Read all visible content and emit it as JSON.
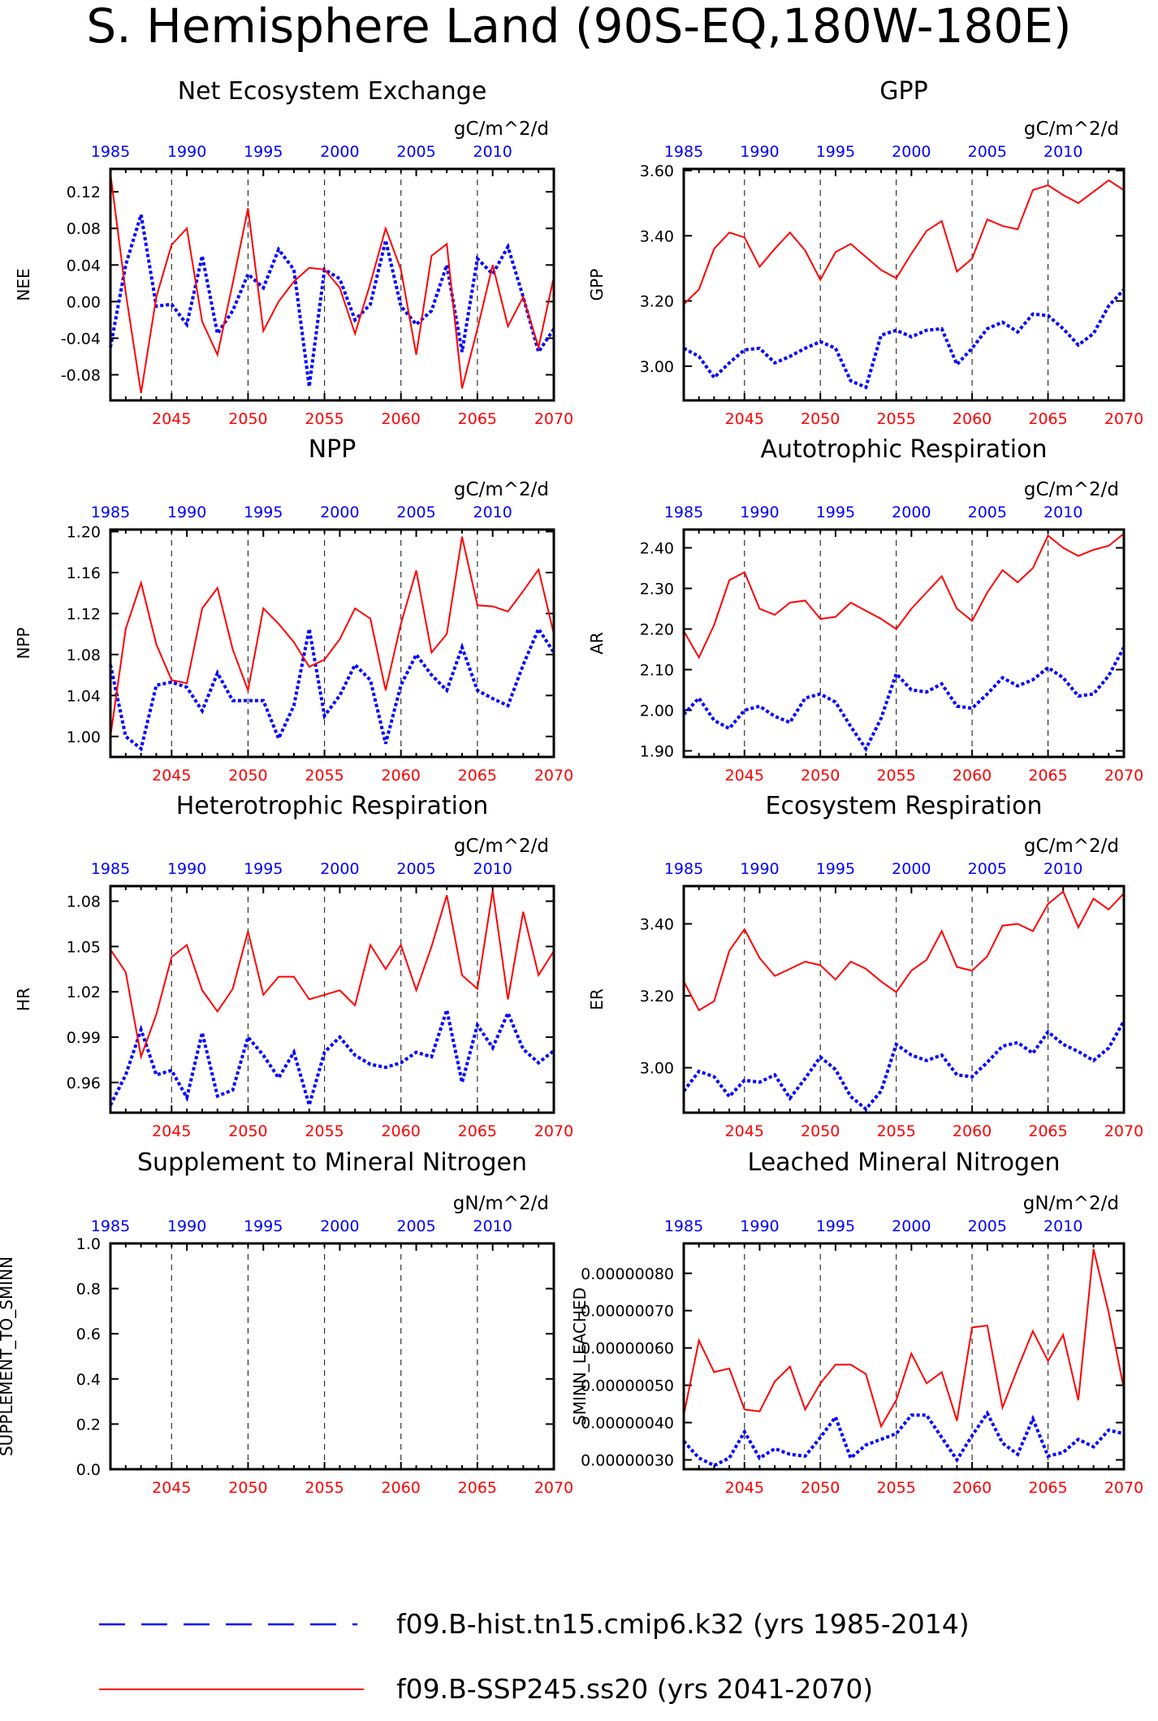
{
  "figure": {
    "title": "S. Hemisphere Land (90S-EQ,180W-180E)"
  },
  "legend": {
    "items": [
      {
        "label": "f09.B-hist.tn15.cmip6.k32 (yrs 1985-2014)",
        "color": "#0000ff",
        "style": "dashed"
      },
      {
        "label": "f09.B-SSP245.ss20 (yrs 2041-2070)",
        "color": "#ff0000",
        "style": "solid"
      }
    ]
  },
  "chart_data": [
    {
      "type": "line",
      "title": "Net Ecosystem Exchange",
      "units": "gC/m^2/d",
      "ylabel": "NEE",
      "ylim": [
        -0.108,
        0.145
      ],
      "yticks": [
        -0.08,
        -0.04,
        0.0,
        0.04,
        0.08,
        0.12
      ],
      "ytick_labels": [
        "-0.08",
        "-0.04",
        "0.00",
        "0.04",
        "0.08",
        "0.12"
      ],
      "x_top": {
        "label_ticks": [
          1985,
          1990,
          1995,
          2000,
          2005,
          2010
        ],
        "range": [
          1985,
          2014
        ]
      },
      "x_bottom": {
        "label_ticks": [
          2045,
          2050,
          2055,
          2060,
          2065,
          2070
        ],
        "range": [
          2041,
          2070
        ]
      },
      "grid": "dashed vertical at 5-year marks",
      "series": [
        {
          "name": "f09.B-hist.tn15.cmip6.k32",
          "values": [
            -0.05,
            0.04,
            0.095,
            -0.005,
            -0.003,
            -0.025,
            0.05,
            -0.035,
            -0.01,
            0.03,
            0.015,
            0.057,
            0.035,
            -0.093,
            0.035,
            0.025,
            -0.02,
            -0.003,
            0.067,
            -0.005,
            -0.025,
            -0.01,
            0.04,
            -0.055,
            0.047,
            0.03,
            0.06,
            0.005,
            -0.055,
            -0.03
          ]
        },
        {
          "name": "f09.B-SSP245.ss20",
          "values": [
            0.14,
            0.01,
            -0.1,
            0.005,
            0.062,
            0.08,
            -0.022,
            -0.058,
            0.02,
            0.102,
            -0.032,
            0.0,
            0.022,
            0.037,
            0.035,
            0.015,
            -0.035,
            0.02,
            0.08,
            0.035,
            -0.058,
            0.05,
            0.063,
            -0.095,
            -0.03,
            0.04,
            -0.027,
            0.005,
            -0.05,
            0.027
          ]
        }
      ]
    },
    {
      "type": "line",
      "title": "GPP",
      "units": "gC/m^2/d",
      "ylabel": "GPP",
      "ylim": [
        2.895,
        3.605
      ],
      "yticks": [
        3.0,
        3.2,
        3.4,
        3.6
      ],
      "ytick_labels": [
        "3.00",
        "3.20",
        "3.40",
        "3.60"
      ],
      "x_top": {
        "label_ticks": [
          1985,
          1990,
          1995,
          2000,
          2005,
          2010
        ],
        "range": [
          1985,
          2014
        ]
      },
      "x_bottom": {
        "label_ticks": [
          2045,
          2050,
          2055,
          2060,
          2065,
          2070
        ],
        "range": [
          2041,
          2070
        ]
      },
      "grid": "dashed vertical at 5-year marks",
      "series": [
        {
          "name": "f09.B-hist.tn15.cmip6.k32",
          "values": [
            3.055,
            3.03,
            2.965,
            3.01,
            3.05,
            3.055,
            3.01,
            3.03,
            3.055,
            3.075,
            3.055,
            2.955,
            2.935,
            3.095,
            3.11,
            3.09,
            3.11,
            3.115,
            3.005,
            3.055,
            3.115,
            3.135,
            3.105,
            3.16,
            3.155,
            3.115,
            3.065,
            3.1,
            3.185,
            3.235
          ]
        },
        {
          "name": "f09.B-SSP245.ss20",
          "values": [
            3.19,
            3.235,
            3.36,
            3.41,
            3.395,
            3.305,
            3.36,
            3.41,
            3.355,
            3.265,
            3.35,
            3.375,
            3.335,
            3.295,
            3.27,
            3.345,
            3.415,
            3.445,
            3.29,
            3.33,
            3.45,
            3.43,
            3.42,
            3.54,
            3.555,
            3.525,
            3.5,
            3.535,
            3.57,
            3.54
          ]
        }
      ]
    },
    {
      "type": "line",
      "title": "NPP",
      "units": "gC/m^2/d",
      "ylabel": "NPP",
      "ylim": [
        0.98,
        1.202
      ],
      "yticks": [
        1.0,
        1.04,
        1.08,
        1.12,
        1.16,
        1.2
      ],
      "ytick_labels": [
        "1.00",
        "1.04",
        "1.08",
        "1.12",
        "1.16",
        "1.20"
      ],
      "x_top": {
        "label_ticks": [
          1985,
          1990,
          1995,
          2000,
          2005,
          2010
        ],
        "range": [
          1985,
          2014
        ]
      },
      "x_bottom": {
        "label_ticks": [
          2045,
          2050,
          2055,
          2060,
          2065,
          2070
        ],
        "range": [
          2041,
          2070
        ]
      },
      "grid": "dashed vertical at 5-year marks",
      "series": [
        {
          "name": "f09.B-hist.tn15.cmip6.k32",
          "values": [
            1.07,
            1.0,
            0.988,
            1.05,
            1.053,
            1.048,
            1.025,
            1.062,
            1.035,
            1.035,
            1.035,
            0.998,
            1.03,
            1.105,
            1.02,
            1.04,
            1.07,
            1.055,
            0.993,
            1.05,
            1.08,
            1.06,
            1.045,
            1.087,
            1.045,
            1.037,
            1.03,
            1.07,
            1.105,
            1.082
          ]
        },
        {
          "name": "f09.B-SSP245.ss20",
          "values": [
            1.0,
            1.105,
            1.15,
            1.09,
            1.055,
            1.052,
            1.125,
            1.145,
            1.085,
            1.045,
            1.125,
            1.11,
            1.092,
            1.068,
            1.075,
            1.095,
            1.125,
            1.115,
            1.045,
            1.11,
            1.162,
            1.082,
            1.1,
            1.195,
            1.128,
            1.127,
            1.122,
            1.142,
            1.163,
            1.1
          ]
        }
      ]
    },
    {
      "type": "line",
      "title": "Autotrophic Respiration",
      "units": "gC/m^2/d",
      "ylabel": "AR",
      "ylim": [
        1.885,
        2.445
      ],
      "yticks": [
        1.9,
        2.0,
        2.1,
        2.2,
        2.3,
        2.4
      ],
      "ytick_labels": [
        "1.90",
        "2.00",
        "2.10",
        "2.20",
        "2.30",
        "2.40"
      ],
      "x_top": {
        "label_ticks": [
          1985,
          1990,
          1995,
          2000,
          2005,
          2010
        ],
        "range": [
          1985,
          2014
        ]
      },
      "x_bottom": {
        "label_ticks": [
          2045,
          2050,
          2055,
          2060,
          2065,
          2070
        ],
        "range": [
          2041,
          2070
        ]
      },
      "grid": "dashed vertical at 5-year marks",
      "series": [
        {
          "name": "f09.B-hist.tn15.cmip6.k32",
          "values": [
            1.99,
            2.03,
            1.975,
            1.955,
            2.0,
            2.01,
            1.985,
            1.97,
            2.03,
            2.04,
            2.02,
            1.96,
            1.905,
            1.98,
            2.09,
            2.05,
            2.045,
            2.065,
            2.01,
            2.005,
            2.04,
            2.08,
            2.06,
            2.075,
            2.105,
            2.08,
            2.035,
            2.04,
            2.085,
            2.155
          ]
        },
        {
          "name": "f09.B-SSP245.ss20",
          "values": [
            2.195,
            2.13,
            2.21,
            2.32,
            2.34,
            2.25,
            2.235,
            2.265,
            2.27,
            2.225,
            2.23,
            2.265,
            2.245,
            2.225,
            2.2,
            2.25,
            2.29,
            2.33,
            2.25,
            2.22,
            2.29,
            2.345,
            2.315,
            2.35,
            2.43,
            2.4,
            2.38,
            2.395,
            2.405,
            2.435
          ]
        }
      ]
    },
    {
      "type": "line",
      "title": "Heterotrophic Respiration",
      "units": "gC/m^2/d",
      "ylabel": "HR",
      "ylim": [
        0.94,
        1.09
      ],
      "yticks": [
        0.96,
        0.99,
        1.02,
        1.05,
        1.08
      ],
      "ytick_labels": [
        "0.96",
        "0.99",
        "1.02",
        "1.05",
        "1.08"
      ],
      "x_top": {
        "label_ticks": [
          1985,
          1990,
          1995,
          2000,
          2005,
          2010
        ],
        "range": [
          1985,
          2014
        ]
      },
      "x_bottom": {
        "label_ticks": [
          2045,
          2050,
          2055,
          2060,
          2065,
          2070
        ],
        "range": [
          2041,
          2070
        ]
      },
      "grid": "dashed vertical at 5-year marks",
      "series": [
        {
          "name": "f09.B-hist.tn15.cmip6.k32",
          "values": [
            0.945,
            0.965,
            0.995,
            0.965,
            0.968,
            0.95,
            0.993,
            0.951,
            0.955,
            0.99,
            0.978,
            0.963,
            0.98,
            0.945,
            0.98,
            0.99,
            0.978,
            0.972,
            0.97,
            0.973,
            0.98,
            0.977,
            1.008,
            0.96,
            0.998,
            0.983,
            1.006,
            0.982,
            0.973,
            0.981
          ]
        },
        {
          "name": "f09.B-SSP245.ss20",
          "values": [
            1.048,
            1.033,
            0.977,
            1.005,
            1.043,
            1.051,
            1.021,
            1.007,
            1.022,
            1.06,
            1.018,
            1.03,
            1.03,
            1.015,
            1.018,
            1.021,
            1.011,
            1.051,
            1.035,
            1.051,
            1.021,
            1.05,
            1.084,
            1.031,
            1.022,
            1.087,
            1.015,
            1.073,
            1.031,
            1.047
          ]
        }
      ]
    },
    {
      "type": "line",
      "title": "Ecosystem Respiration",
      "units": "gC/m^2/d",
      "ylabel": "ER",
      "ylim": [
        2.875,
        3.505
      ],
      "yticks": [
        3.0,
        3.2,
        3.4
      ],
      "ytick_labels": [
        "3.00",
        "3.20",
        "3.40"
      ],
      "x_top": {
        "label_ticks": [
          1985,
          1990,
          1995,
          2000,
          2005,
          2010
        ],
        "range": [
          1985,
          2014
        ]
      },
      "x_bottom": {
        "label_ticks": [
          2045,
          2050,
          2055,
          2060,
          2065,
          2070
        ],
        "range": [
          2041,
          2070
        ]
      },
      "grid": "dashed vertical at 5-year marks",
      "series": [
        {
          "name": "f09.B-hist.tn15.cmip6.k32",
          "values": [
            2.935,
            2.99,
            2.975,
            2.92,
            2.965,
            2.96,
            2.98,
            2.915,
            2.97,
            3.03,
            2.995,
            2.92,
            2.885,
            2.935,
            3.065,
            3.035,
            3.02,
            3.035,
            2.98,
            2.975,
            3.015,
            3.06,
            3.07,
            3.04,
            3.1,
            3.065,
            3.045,
            3.02,
            3.055,
            3.13
          ]
        },
        {
          "name": "f09.B-SSP245.ss20",
          "values": [
            3.24,
            3.16,
            3.185,
            3.325,
            3.385,
            3.305,
            3.255,
            3.275,
            3.295,
            3.285,
            3.245,
            3.295,
            3.275,
            3.24,
            3.21,
            3.27,
            3.3,
            3.38,
            3.28,
            3.27,
            3.31,
            3.395,
            3.4,
            3.38,
            3.455,
            3.49,
            3.39,
            3.47,
            3.44,
            3.485
          ]
        }
      ]
    },
    {
      "type": "line",
      "title": "Supplement to Mineral Nitrogen",
      "units": "gN/m^2/d",
      "ylabel": "SUPPLEMENT_TO_SMINN",
      "ylim": [
        0.0,
        1.0
      ],
      "yticks": [
        0.0,
        0.2,
        0.4,
        0.6,
        0.8,
        1.0
      ],
      "ytick_labels": [
        "0.0",
        "0.2",
        "0.4",
        "0.6",
        "0.8",
        "1.0"
      ],
      "x_top": {
        "label_ticks": [
          1985,
          1990,
          1995,
          2000,
          2005,
          2010
        ],
        "range": [
          1985,
          2014
        ]
      },
      "x_bottom": {
        "label_ticks": [
          2045,
          2050,
          2055,
          2060,
          2065,
          2070
        ],
        "range": [
          2041,
          2070
        ]
      },
      "grid": "dashed vertical at 5-year marks",
      "series": []
    },
    {
      "type": "line",
      "title": "Leached Mineral Nitrogen",
      "units": "gN/m^2/d",
      "ylabel": "SMINN_LEACHED",
      "ylim": [
        2.75e-07,
        8.8e-07
      ],
      "yticks": [
        3e-07,
        4e-07,
        5e-07,
        6e-07,
        7e-07,
        8e-07
      ],
      "ytick_labels": [
        "0.00000030",
        "0.00000040",
        "0.00000050",
        "0.00000060",
        "0.00000070",
        "0.00000080"
      ],
      "x_top": {
        "label_ticks": [
          1985,
          1990,
          1995,
          2000,
          2005,
          2010
        ],
        "range": [
          1985,
          2014
        ]
      },
      "x_bottom": {
        "label_ticks": [
          2045,
          2050,
          2055,
          2060,
          2065,
          2070
        ],
        "range": [
          2041,
          2070
        ]
      },
      "grid": "dashed vertical at 5-year marks",
      "series": [
        {
          "name": "f09.B-hist.tn15.cmip6.k32",
          "values": [
            3.5e-07,
            3.05e-07,
            2.85e-07,
            3.05e-07,
            3.75e-07,
            3.05e-07,
            3.3e-07,
            3.15e-07,
            3.1e-07,
            3.6e-07,
            4.15e-07,
            3.05e-07,
            3.4e-07,
            3.55e-07,
            3.7e-07,
            4.2e-07,
            4.2e-07,
            3.6e-07,
            3e-07,
            3.65e-07,
            4.25e-07,
            3.45e-07,
            3.15e-07,
            4.1e-07,
            3.1e-07,
            3.2e-07,
            3.55e-07,
            3.35e-07,
            3.8e-07,
            3.7e-07
          ]
        },
        {
          "name": "f09.B-SSP245.ss20",
          "values": [
            4.2e-07,
            6.2e-07,
            5.35e-07,
            5.45e-07,
            4.35e-07,
            4.3e-07,
            5.1e-07,
            5.5e-07,
            4.35e-07,
            5.05e-07,
            5.55e-07,
            5.55e-07,
            5.3e-07,
            3.9e-07,
            4.6e-07,
            5.85e-07,
            5.05e-07,
            5.35e-07,
            4.05e-07,
            6.55e-07,
            6.6e-07,
            4.4e-07,
            5.45e-07,
            6.45e-07,
            5.65e-07,
            6.35e-07,
            4.6e-07,
            8.65e-07,
            6.95e-07,
            4.9e-07
          ]
        }
      ]
    }
  ]
}
